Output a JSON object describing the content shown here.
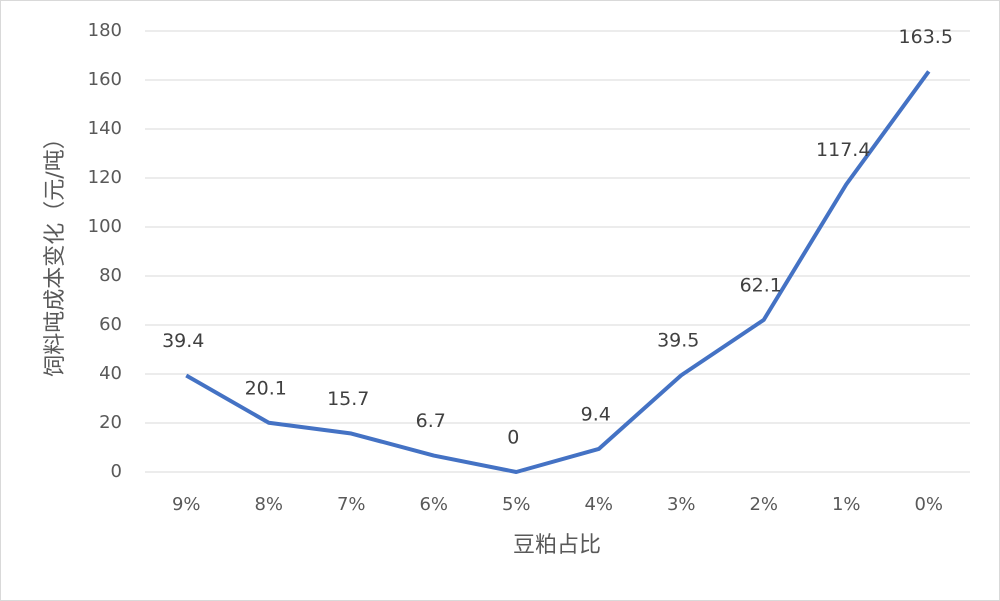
{
  "chart_data": {
    "type": "line",
    "x_label": "豆粕占比",
    "y_label": "饲料吨成本变化（元/吨）",
    "categories": [
      "9%",
      "8%",
      "7%",
      "6%",
      "5%",
      "4%",
      "3%",
      "2%",
      "1%",
      "0%"
    ],
    "series": [
      {
        "name": "饲料吨成本变化",
        "color": "#4472c4",
        "values": [
          39.4,
          20.1,
          15.7,
          6.7,
          0,
          9.4,
          39.5,
          62.1,
          117.4,
          163.5
        ]
      }
    ],
    "ylim": [
      0,
      180
    ],
    "yticks": [
      0,
      20,
      40,
      60,
      80,
      100,
      120,
      140,
      160,
      180
    ],
    "grid": true
  }
}
